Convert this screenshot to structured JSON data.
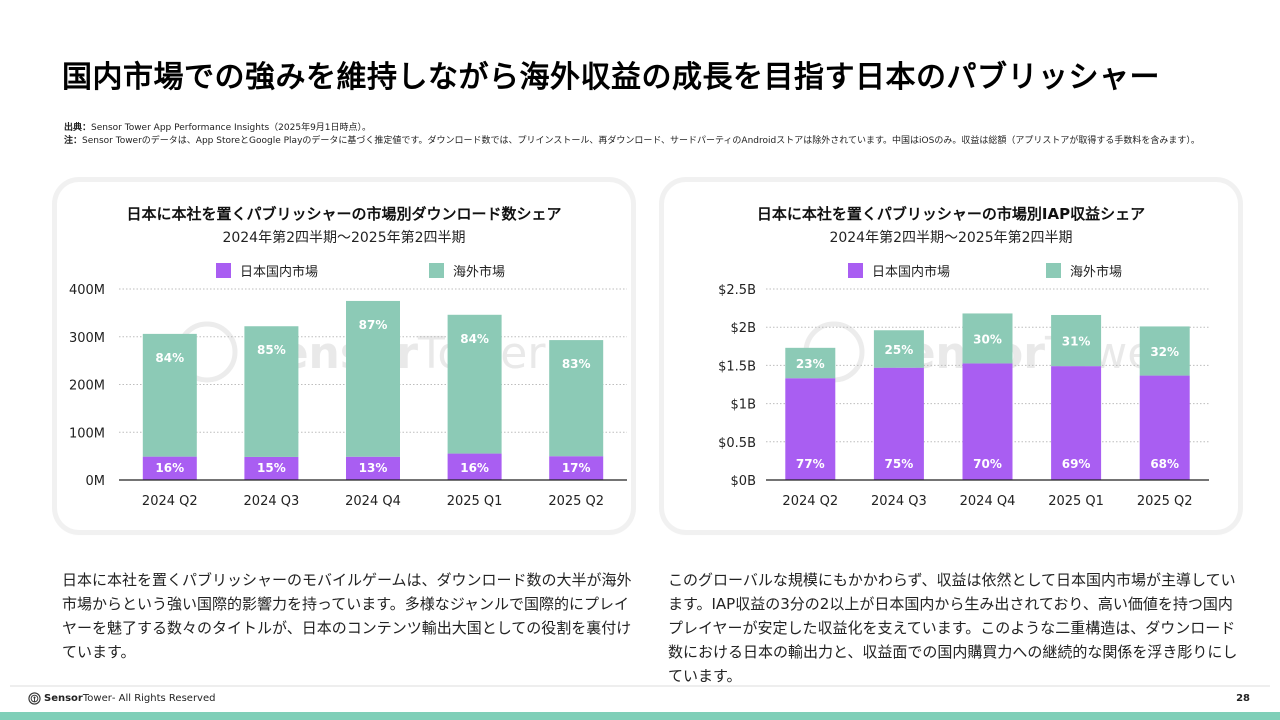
{
  "page": {
    "title": "国内市場での強みを維持しながら海外収益の成長を目指す日本のパブリッシャー",
    "notes": {
      "source_label": "出典：",
      "source_text": "Sensor Tower App Performance Insights（2025年9月1日時点）。",
      "note_label": "注：",
      "note_text": "Sensor Towerのデータは、App StoreとGoogle Playのデータに基づく推定値です。ダウンロード数では、プリインストール、再ダウンロード、サードパーティのAndroidストアは除外されています。中国はiOSのみ。収益は総額（アプリストアが取得する手数料を含みます）。"
    },
    "body_left": "日本に本社を置くパブリッシャーのモバイルゲームは、ダウンロード数の大半が海外市場からという強い国際的影響力を持っています。多様なジャンルで国際的にプレイヤーを魅了する数々のタイトルが、日本のコンテンツ輸出大国としての役割を裏付けています。",
    "body_right": "このグローバルな規模にもかかわらず、収益は依然として日本国内市場が主導しています。IAP収益の3分の2以上が日本国内から生み出されており、高い価値を持つ国内プレイヤーが安定した収益化を支えています。このような二重構造は、ダウンロード数における日本の輸出力と、収益面での国内購買力への継続的な関係を浮き彫りにしています。",
    "footer": {
      "brand_bold": "Sensor",
      "brand_light": "Tower",
      "rights": " - All Rights Reserved",
      "page_number": "28"
    },
    "watermark": {
      "bold": "Sensor",
      "light": "Tower"
    }
  },
  "colors": {
    "domestic": "#a95ef2",
    "overseas": "#8ccab6",
    "accent_bar": "#7fcfb8"
  },
  "chart_data": [
    {
      "type": "bar",
      "stacked": true,
      "title": "日本に本社を置くパブリッシャーの市場別ダウンロード数シェア",
      "subtitle": "2024年第2四半期〜2025年第2四半期",
      "categories": [
        "2024 Q2",
        "2024 Q3",
        "2024 Q4",
        "2025 Q1",
        "2025 Q2"
      ],
      "totals": [
        306,
        322,
        375,
        346,
        293
      ],
      "series": [
        {
          "name": "日本国内市場",
          "color": "#a95ef2",
          "share_pct": [
            16,
            15,
            13,
            16,
            17
          ]
        },
        {
          "name": "海外市場",
          "color": "#8ccab6",
          "share_pct": [
            84,
            85,
            87,
            84,
            83
          ]
        }
      ],
      "unit": "M",
      "yticks": [
        "0M",
        "100M",
        "200M",
        "300M",
        "400M"
      ],
      "ytick_values": [
        0,
        100,
        200,
        300,
        400
      ],
      "ylim": [
        0,
        400
      ],
      "grid": true,
      "legend": "top-center"
    },
    {
      "type": "bar",
      "stacked": true,
      "title": "日本に本社を置くパブリッシャーの市場別IAP収益シェア",
      "subtitle": "2024年第2四半期〜2025年第2四半期",
      "categories": [
        "2024 Q2",
        "2024 Q3",
        "2024 Q4",
        "2025 Q1",
        "2025 Q2"
      ],
      "totals": [
        1.73,
        1.96,
        2.18,
        2.16,
        2.01
      ],
      "series": [
        {
          "name": "日本国内市場",
          "color": "#a95ef2",
          "share_pct": [
            77,
            75,
            70,
            69,
            68
          ]
        },
        {
          "name": "海外市場",
          "color": "#8ccab6",
          "share_pct": [
            23,
            25,
            30,
            31,
            32
          ]
        }
      ],
      "unit": "$B",
      "yticks": [
        "$0B",
        "$0.5B",
        "$1B",
        "$1.5B",
        "$2B",
        "$2.5B"
      ],
      "ytick_values": [
        0,
        0.5,
        1,
        1.5,
        2,
        2.5
      ],
      "ylim": [
        0,
        2.5
      ],
      "grid": true,
      "legend": "top-center"
    }
  ]
}
